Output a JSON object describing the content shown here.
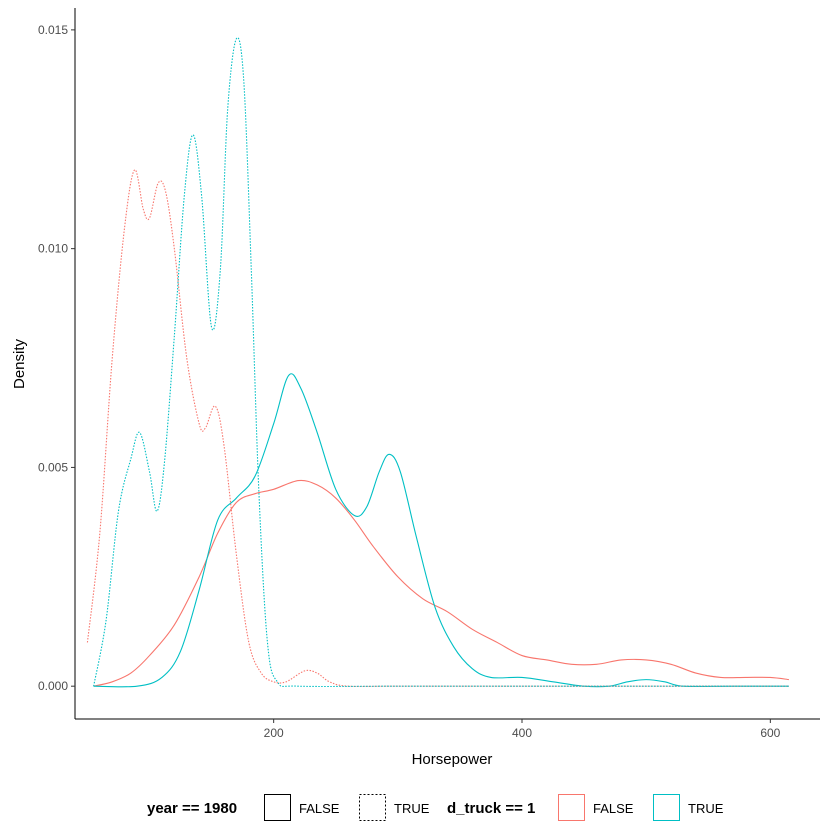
{
  "chart_data": {
    "type": "line",
    "title": "",
    "xlabel": "Horsepower",
    "ylabel": "Density",
    "xlim": [
      40,
      640
    ],
    "ylim": [
      -0.00075,
      0.0155
    ],
    "x_ticks": [
      200,
      400,
      600
    ],
    "y_ticks": [
      0.0,
      0.005,
      0.01,
      0.015
    ],
    "y_tick_labels": [
      "0.000",
      "0.005",
      "0.010",
      "0.015"
    ],
    "grid": false,
    "legend_position": "bottom",
    "legends": [
      {
        "title": "year == 1980",
        "kind": "linetype",
        "entries": [
          {
            "label": "FALSE",
            "dash": "solid"
          },
          {
            "label": "TRUE",
            "dash": "dotted"
          }
        ]
      },
      {
        "title": "d_truck == 1",
        "kind": "colour",
        "entries": [
          {
            "label": "FALSE",
            "color": "#F8766D"
          },
          {
            "label": "TRUE",
            "color": "#00BFC4"
          }
        ]
      }
    ],
    "series": [
      {
        "year_1980": "FALSE",
        "d_truck": "FALSE",
        "color": "#F8766D",
        "dash": "solid",
        "points": [
          [
            55,
            0.0
          ],
          [
            70,
            0.0001
          ],
          [
            85,
            0.0003
          ],
          [
            100,
            0.0007
          ],
          [
            120,
            0.0014
          ],
          [
            140,
            0.0025
          ],
          [
            155,
            0.0035
          ],
          [
            170,
            0.0042
          ],
          [
            185,
            0.0044
          ],
          [
            200,
            0.0045
          ],
          [
            220,
            0.0047
          ],
          [
            235,
            0.0046
          ],
          [
            250,
            0.0043
          ],
          [
            265,
            0.0038
          ],
          [
            280,
            0.0032
          ],
          [
            300,
            0.0025
          ],
          [
            320,
            0.002
          ],
          [
            340,
            0.0017
          ],
          [
            360,
            0.0013
          ],
          [
            380,
            0.001
          ],
          [
            400,
            0.0007
          ],
          [
            420,
            0.0006
          ],
          [
            440,
            0.0005
          ],
          [
            460,
            0.0005
          ],
          [
            480,
            0.0006
          ],
          [
            500,
            0.0006
          ],
          [
            520,
            0.0005
          ],
          [
            540,
            0.0003
          ],
          [
            560,
            0.0002
          ],
          [
            580,
            0.0002
          ],
          [
            600,
            0.0002
          ],
          [
            615,
            0.00015
          ]
        ]
      },
      {
        "year_1980": "FALSE",
        "d_truck": "TRUE",
        "color": "#00BFC4",
        "dash": "solid",
        "points": [
          [
            55,
            0.0
          ],
          [
            90,
            0.0
          ],
          [
            110,
            0.0002
          ],
          [
            125,
            0.0008
          ],
          [
            140,
            0.0022
          ],
          [
            155,
            0.0038
          ],
          [
            170,
            0.0043
          ],
          [
            185,
            0.0048
          ],
          [
            200,
            0.006
          ],
          [
            212,
            0.0071
          ],
          [
            222,
            0.0068
          ],
          [
            235,
            0.0058
          ],
          [
            250,
            0.0045
          ],
          [
            265,
            0.0039
          ],
          [
            275,
            0.0041
          ],
          [
            285,
            0.0049
          ],
          [
            293,
            0.0053
          ],
          [
            302,
            0.0049
          ],
          [
            315,
            0.0034
          ],
          [
            330,
            0.0018
          ],
          [
            345,
            0.0009
          ],
          [
            360,
            0.0004
          ],
          [
            375,
            0.0002
          ],
          [
            400,
            0.0002
          ],
          [
            425,
            0.0001
          ],
          [
            450,
            0.0
          ],
          [
            470,
            0.0
          ],
          [
            485,
            0.0001
          ],
          [
            500,
            0.00015
          ],
          [
            515,
            0.0001
          ],
          [
            530,
            0.0
          ],
          [
            570,
            0.0
          ],
          [
            615,
            0.0
          ]
        ]
      },
      {
        "year_1980": "TRUE",
        "d_truck": "FALSE",
        "color": "#F8766D",
        "dash": "dotted",
        "points": [
          [
            50,
            0.001
          ],
          [
            60,
            0.0035
          ],
          [
            70,
            0.0075
          ],
          [
            80,
            0.0105
          ],
          [
            88,
            0.0118
          ],
          [
            95,
            0.0109
          ],
          [
            100,
            0.0107
          ],
          [
            107,
            0.0115
          ],
          [
            113,
            0.0113
          ],
          [
            120,
            0.01
          ],
          [
            130,
            0.0075
          ],
          [
            140,
            0.006
          ],
          [
            145,
            0.0059
          ],
          [
            153,
            0.0064
          ],
          [
            160,
            0.0055
          ],
          [
            170,
            0.003
          ],
          [
            180,
            0.001
          ],
          [
            190,
            0.0003
          ],
          [
            200,
            0.0001
          ],
          [
            210,
            0.0001
          ],
          [
            225,
            0.00035
          ],
          [
            235,
            0.0003
          ],
          [
            245,
            0.0001
          ],
          [
            260,
            0.0
          ],
          [
            300,
            0.0
          ],
          [
            400,
            0.0
          ],
          [
            500,
            0.0
          ],
          [
            615,
            0.0
          ]
        ]
      },
      {
        "year_1980": "TRUE",
        "d_truck": "TRUE",
        "color": "#00BFC4",
        "dash": "dotted",
        "points": [
          [
            55,
            0.0
          ],
          [
            65,
            0.0015
          ],
          [
            75,
            0.004
          ],
          [
            85,
            0.0052
          ],
          [
            92,
            0.0058
          ],
          [
            100,
            0.0049
          ],
          [
            106,
            0.004
          ],
          [
            112,
            0.0051
          ],
          [
            120,
            0.008
          ],
          [
            128,
            0.0112
          ],
          [
            135,
            0.0126
          ],
          [
            142,
            0.0112
          ],
          [
            150,
            0.0082
          ],
          [
            157,
            0.0095
          ],
          [
            163,
            0.0132
          ],
          [
            170,
            0.0148
          ],
          [
            176,
            0.0138
          ],
          [
            182,
            0.0095
          ],
          [
            188,
            0.0045
          ],
          [
            195,
            0.001
          ],
          [
            203,
            0.0001
          ],
          [
            220,
            0.0
          ],
          [
            300,
            0.0
          ],
          [
            400,
            0.0
          ],
          [
            500,
            0.0
          ],
          [
            615,
            0.0
          ]
        ]
      }
    ]
  }
}
